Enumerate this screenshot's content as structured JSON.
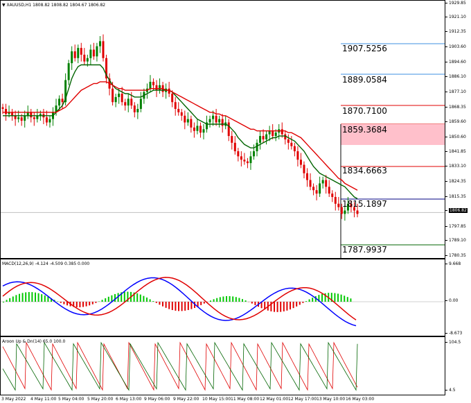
{
  "window": {
    "title": "XAUUSD,H1",
    "ohlc": "1808.82 1808.82 1804.67 1806.82"
  },
  "price_scale": [
    "1929.85",
    "1921.10",
    "1912.35",
    "1903.60",
    "1894.60",
    "1886.10",
    "1877.10",
    "1868.35",
    "1859.60",
    "1850.60",
    "1841.85",
    "1833.10",
    "1824.35",
    "1815.35",
    "1806.82",
    "1797.85",
    "1789.10",
    "1780.35"
  ],
  "levels": [
    {
      "value": "1907.5256",
      "color": "#3c8fe0"
    },
    {
      "value": "1889.0584",
      "color": "#3c8fe0"
    },
    {
      "value": "1870.7100",
      "color": "#e00000"
    },
    {
      "value": "1859.3684",
      "color": "#e00000"
    },
    {
      "value": "1834.6663",
      "color": "#e00000"
    },
    {
      "value": "1815.1897",
      "color": "#000080"
    },
    {
      "value": "1787.9937",
      "color": "#006400"
    }
  ],
  "macd": {
    "title": "MACD(12,26,9) -4.124 -4.509 0.385 0.000",
    "scale": [
      "9.668",
      "0.00",
      "-8.673"
    ]
  },
  "aroon": {
    "title": "Aroon Up & Dn(14) 65.0 100.0",
    "scale": [
      "104.5",
      "4.5"
    ]
  },
  "time_axis": [
    "3 May 2022",
    "4 May 11:00",
    "5 May 04:00",
    "5 May 20:00",
    "6 May 13:00",
    "9 May 06:00",
    "9 May 22:00",
    "10 May 15:00",
    "11 May 08:00",
    "12 May 01:00",
    "12 May 17:00",
    "13 May 10:00",
    "16 May 03:00"
  ],
  "chart_data": {
    "type": "candlestick",
    "symbol": "XAUUSD",
    "timeframe": "H1",
    "ylim": [
      1780.35,
      1929.85
    ],
    "close": [
      1868,
      1865,
      1866,
      1864,
      1862,
      1863,
      1861,
      1864,
      1866,
      1863,
      1862,
      1864,
      1865,
      1863,
      1860,
      1862,
      1866,
      1870,
      1874,
      1872,
      1885,
      1895,
      1902,
      1898,
      1904,
      1900,
      1896,
      1898,
      1903,
      1899,
      1905,
      1908,
      1898,
      1886,
      1880,
      1872,
      1875,
      1877,
      1872,
      1870,
      1874,
      1870,
      1866,
      1868,
      1874,
      1878,
      1880,
      1884,
      1882,
      1879,
      1882,
      1878,
      1880,
      1877,
      1872,
      1868,
      1866,
      1864,
      1860,
      1862,
      1857,
      1855,
      1858,
      1854,
      1856,
      1860,
      1862,
      1864,
      1860,
      1862,
      1858,
      1860,
      1852,
      1848,
      1843,
      1840,
      1838,
      1837,
      1836,
      1840,
      1843,
      1848,
      1852,
      1850,
      1853,
      1855,
      1852,
      1854,
      1856,
      1853,
      1850,
      1848,
      1846,
      1843,
      1838,
      1835,
      1830,
      1826,
      1822,
      1820,
      1818,
      1824,
      1826,
      1822,
      1818,
      1816,
      1812,
      1810,
      1806,
      1808,
      1812,
      1810,
      1808,
      1806
    ],
    "series": [
      {
        "name": "",
        "values": [
          1864,
          1864,
          1864,
          1864,
          1864,
          1864,
          1864,
          1864,
          1864,
          1864,
          1864,
          1864,
          1864,
          1864,
          1864,
          1864,
          1864,
          1866,
          1868,
          1870,
          1874,
          1880,
          1886,
          1890,
          1893,
          1894,
          1894,
          1894,
          1894,
          1894,
          1894,
          1894,
          1892,
          1888,
          1885,
          1882,
          1880,
          1879,
          1878,
          1877,
          1877,
          1876,
          1875,
          1875,
          1875,
          1876,
          1877,
          1878,
          1879,
          1879,
          1879,
          1879,
          1879,
          1879,
          1878,
          1876,
          1874,
          1872,
          1870,
          1868,
          1866,
          1864,
          1862,
          1861,
          1860,
          1859,
          1859,
          1859,
          1859,
          1859,
          1859,
          1859,
          1858,
          1856,
          1854,
          1851,
          1849,
          1847,
          1846,
          1845,
          1845,
          1846,
          1847,
          1848,
          1849,
          1850,
          1851,
          1851,
          1852,
          1852,
          1852,
          1851,
          1850,
          1849,
          1847,
          1845,
          1843,
          1840,
          1837,
          1834,
          1832,
          1830,
          1829,
          1828,
          1827,
          1826,
          1825,
          1824,
          1823,
          1822,
          1820,
          1818,
          1816,
          1815
        ]
      },
      {
        "name": "",
        "values": [
          1866,
          1866,
          1866,
          1866,
          1866,
          1866,
          1866,
          1866,
          1866,
          1866,
          1866,
          1866,
          1866,
          1866,
          1866,
          1866,
          1866,
          1866,
          1867,
          1868,
          1869,
          1871,
          1873,
          1875,
          1877,
          1879,
          1880,
          1881,
          1882,
          1883,
          1883,
          1884,
          1884,
          1884,
          1883,
          1882,
          1881,
          1880,
          1880,
          1879,
          1879,
          1879,
          1879,
          1879,
          1879,
          1879,
          1879,
          1880,
          1880,
          1880,
          1880,
          1880,
          1879,
          1879,
          1878,
          1877,
          1876,
          1875,
          1874,
          1873,
          1872,
          1871,
          1870,
          1869,
          1868,
          1867,
          1866,
          1866,
          1865,
          1865,
          1864,
          1864,
          1863,
          1862,
          1861,
          1860,
          1859,
          1858,
          1857,
          1856,
          1856,
          1855,
          1855,
          1855,
          1855,
          1855,
          1855,
          1855,
          1855,
          1855,
          1855,
          1854,
          1854,
          1853,
          1852,
          1851,
          1849,
          1847,
          1845,
          1843,
          1841,
          1839,
          1837,
          1835,
          1833,
          1831,
          1829,
          1827,
          1826,
          1824,
          1823,
          1822,
          1821,
          1820
        ]
      }
    ]
  }
}
